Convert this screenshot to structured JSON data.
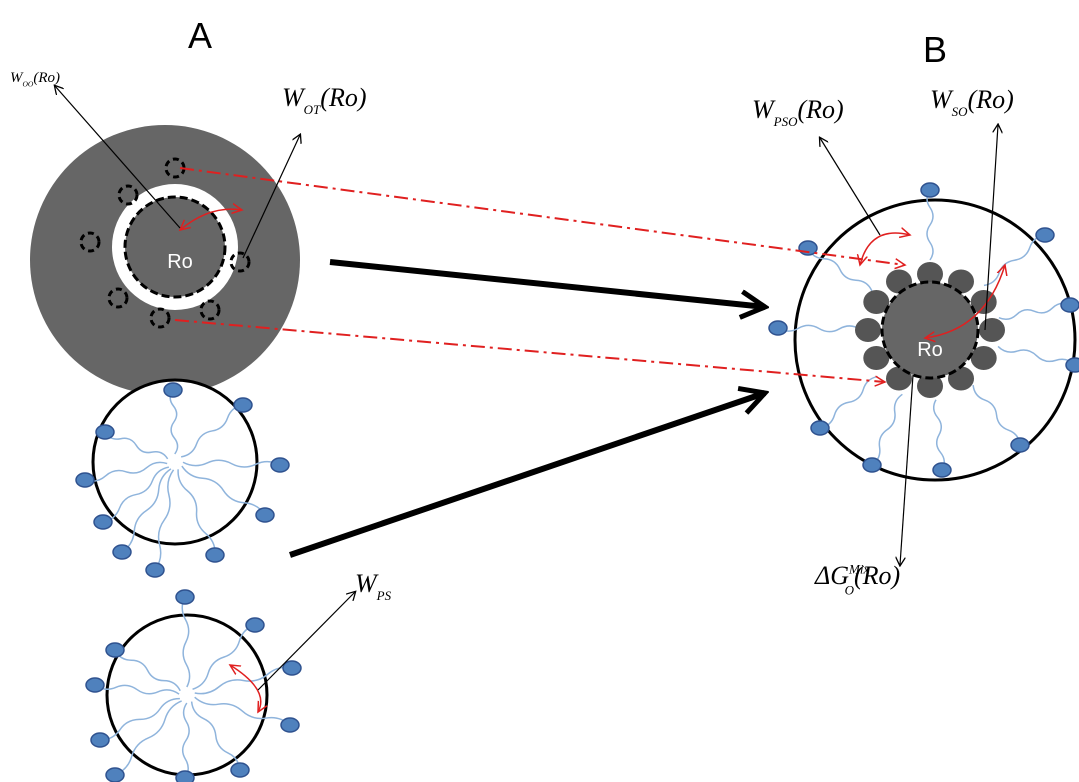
{
  "panels": {
    "a": "A",
    "b": "B"
  },
  "labels": [
    {
      "main": "W",
      "sub": "OO",
      "rest": "(Ro)"
    },
    {
      "main": "W",
      "sub": "OT",
      "rest": "(Ro)"
    },
    {
      "main": "W",
      "sub": "PSO",
      "rest": "(Ro)"
    },
    {
      "main": "W",
      "sub": "SO",
      "rest": "(Ro)"
    },
    {
      "main": "ΔG",
      "sub": "O",
      "sup": "Mix",
      "rest": "(Ro)"
    },
    {
      "main": "W",
      "sub": "PS"
    }
  ],
  "cores": [
    "Ro",
    "Ro"
  ]
}
